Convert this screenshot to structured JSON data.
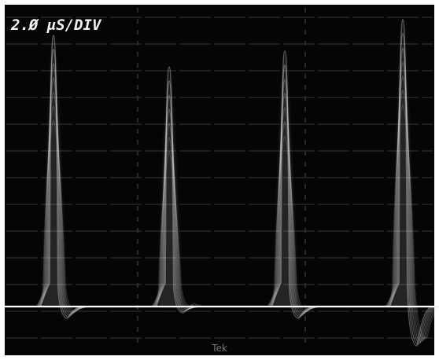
{
  "screen": {
    "timebase_label": "2.Ø μS/DIV",
    "brand": "Tek"
  }
}
